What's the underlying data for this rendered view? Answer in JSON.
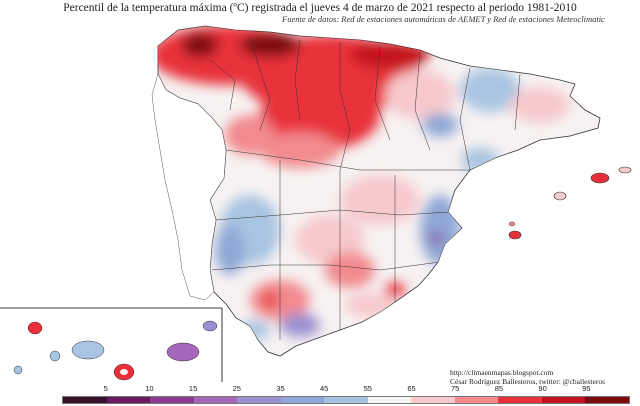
{
  "title": "Percentil de la temperatura máxima (ºC) registrada el jueves 4 de marzo de 2021 respecto al periodo 1981-2010",
  "source": "Fuente de datos: Red de estaciones automáticas de AEMET y Red de estaciones Meteoclimatic",
  "credits": {
    "url": "http://climaenmapas.blogspot.com",
    "author": "César Rodríguez Ballesteros, twitter: @cballesteros"
  },
  "legend": {
    "ticks": [
      "5",
      "10",
      "15",
      "25",
      "35",
      "45",
      "55",
      "65",
      "75",
      "85",
      "90",
      "95"
    ],
    "colors": [
      "#3b0f2e",
      "#6a1a5e",
      "#8a3a92",
      "#a466b8",
      "#9a8fd0",
      "#8fa7d6",
      "#a9c4e2",
      "#f5f5f5",
      "#f7c9cc",
      "#f28a8e",
      "#e8303a",
      "#c3141d",
      "#7a0a10"
    ]
  },
  "map": {
    "regions": [
      "Península Ibérica",
      "Islas Baleares",
      "Islas Canarias"
    ]
  }
}
